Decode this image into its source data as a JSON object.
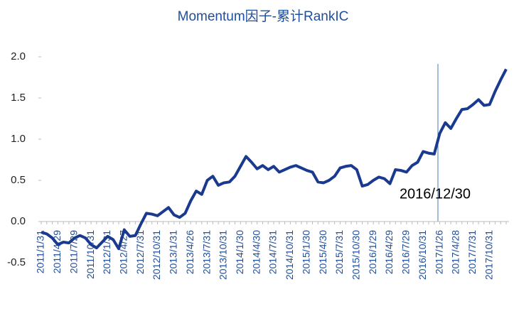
{
  "chart_data": {
    "type": "line",
    "title": "Momentum因子-累计RankIC",
    "categories": [
      "2011/1/31",
      null,
      null,
      "2011/4/29",
      null,
      null,
      "2011/7/29",
      null,
      null,
      "2011/10/31",
      null,
      null,
      "2012/1/31",
      null,
      null,
      "2012/4/27",
      null,
      null,
      "2012/7/31",
      null,
      null,
      "2012/10/31",
      null,
      null,
      "2013/1/31",
      null,
      null,
      "2013/4/26",
      null,
      null,
      "2013/7/31",
      null,
      null,
      "2013/10/31",
      null,
      null,
      "2014/1/30",
      null,
      null,
      "2014/4/30",
      null,
      null,
      "2014/7/31",
      null,
      null,
      "2014/10/31",
      null,
      null,
      "2015/1/30",
      null,
      null,
      "2015/4/30",
      null,
      null,
      "2015/7/31",
      null,
      null,
      "2015/10/30",
      null,
      null,
      "2016/1/29",
      null,
      null,
      "2016/4/29",
      null,
      null,
      "2016/7/29",
      null,
      null,
      "2016/10/31",
      null,
      null,
      "2017/1/26",
      null,
      null,
      "2017/4/28",
      null,
      null,
      "2017/7/31",
      null,
      null,
      "2017/10/31",
      null,
      null,
      null
    ],
    "values": [
      -0.13,
      -0.15,
      -0.2,
      -0.28,
      -0.25,
      -0.26,
      -0.2,
      -0.17,
      -0.2,
      -0.28,
      -0.32,
      -0.25,
      -0.18,
      -0.22,
      -0.33,
      -0.1,
      -0.18,
      -0.17,
      -0.03,
      0.1,
      0.09,
      0.07,
      0.12,
      0.17,
      0.08,
      0.05,
      0.1,
      0.25,
      0.37,
      0.33,
      0.5,
      0.55,
      0.44,
      0.47,
      0.48,
      0.55,
      0.67,
      0.79,
      0.72,
      0.64,
      0.68,
      0.63,
      0.67,
      0.6,
      0.63,
      0.66,
      0.68,
      0.65,
      0.62,
      0.6,
      0.48,
      0.47,
      0.5,
      0.55,
      0.65,
      0.67,
      0.68,
      0.63,
      0.43,
      0.45,
      0.5,
      0.54,
      0.52,
      0.46,
      0.63,
      0.62,
      0.6,
      0.68,
      0.72,
      0.85,
      0.83,
      0.82,
      1.07,
      1.2,
      1.13,
      1.25,
      1.36,
      1.37,
      1.42,
      1.48,
      1.41,
      1.42,
      1.58,
      1.72,
      1.85
    ],
    "color": "#1a3a8f",
    "ylim": [
      -0.5,
      2.0
    ],
    "yticks": [
      -0.5,
      {
        "value": 0,
        "label": "0.0"
      },
      0.5,
      {
        "value": 1,
        "label": "1.0"
      },
      1.5,
      {
        "value": 2,
        "label": "2.0"
      }
    ],
    "annotation": "2016/12/30"
  }
}
